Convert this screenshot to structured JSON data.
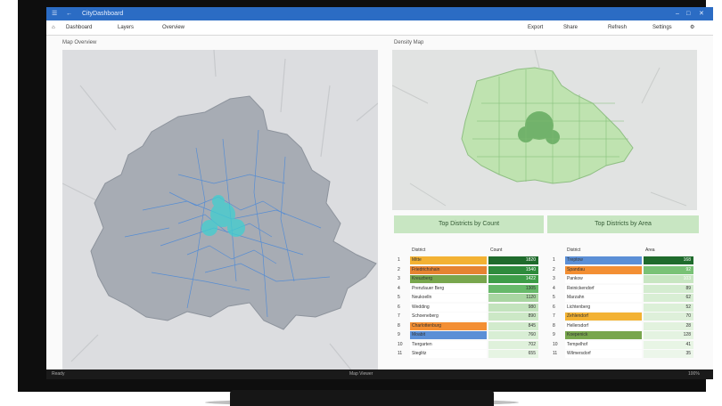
{
  "app": {
    "title": "CityDashboard",
    "statusbar_left": "Ready",
    "statusbar_center": "Map Viewer",
    "statusbar_right": "100%"
  },
  "toolbar": {
    "items": [
      "Dashboard",
      "Layers",
      "Overview"
    ],
    "right_items": [
      "Export",
      "Share",
      "Refresh",
      "Settings"
    ]
  },
  "panels": {
    "left_label": "Map Overview",
    "right_label": "Density Map"
  },
  "banners": {
    "left": "Top Districts by Count",
    "right": "Top Districts by Area"
  },
  "tables": {
    "left": {
      "col1": "District",
      "col2": "Count",
      "rows": [
        {
          "rank": "1",
          "name": "Mitte",
          "value": "1820",
          "color": "#f3b233",
          "vcolor": "#1f6b2c"
        },
        {
          "rank": "2",
          "name": "Friedrichshain",
          "value": "1540",
          "color": "#e58331",
          "vcolor": "#2e8b3c"
        },
        {
          "rank": "3",
          "name": "Kreuzberg",
          "value": "1422",
          "color": "#78a64d",
          "vcolor": "#3e9d48"
        },
        {
          "rank": "4",
          "name": "Prenzlauer Berg",
          "value": "1305",
          "color": "#ffffff",
          "vcolor": "#67b96a"
        },
        {
          "rank": "5",
          "name": "Neukoelln",
          "value": "1120",
          "color": "#ffffff",
          "vcolor": "#a9d6a2"
        },
        {
          "rank": "6",
          "name": "Wedding",
          "value": "980",
          "color": "#ffffff",
          "vcolor": "#c3e3bd"
        },
        {
          "rank": "7",
          "name": "Schoeneberg",
          "value": "890",
          "color": "#ffffff",
          "vcolor": "#cce8c6"
        },
        {
          "rank": "8",
          "name": "Charlottenburg",
          "value": "845",
          "color": "#f38f33",
          "vcolor": "#d2ebcd"
        },
        {
          "rank": "9",
          "name": "Moabit",
          "value": "760",
          "color": "#5b8fd6",
          "vcolor": "#d8eed4"
        },
        {
          "rank": "10",
          "name": "Tiergarten",
          "value": "702",
          "color": "#ffffff",
          "vcolor": "#dff1db"
        },
        {
          "rank": "11",
          "name": "Steglitz",
          "value": "655",
          "color": "#ffffff",
          "vcolor": "#e6f4e3"
        }
      ]
    },
    "right": {
      "col1": "District",
      "col2": "Area",
      "rows": [
        {
          "rank": "1",
          "name": "Treptow",
          "value": "168",
          "color": "#5b8fd6",
          "vcolor": "#1f6b2c"
        },
        {
          "rank": "2",
          "name": "Spandau",
          "value": "92",
          "color": "#f38f33",
          "vcolor": "#79c276"
        },
        {
          "rank": "3",
          "name": "Pankow",
          "value": "103",
          "color": "#ffffff",
          "vcolor": "#c8e6c2"
        },
        {
          "rank": "4",
          "name": "Reinickendorf",
          "value": "89",
          "color": "#ffffff",
          "vcolor": "#d4ecd0"
        },
        {
          "rank": "5",
          "name": "Marzahn",
          "value": "62",
          "color": "#ffffff",
          "vcolor": "#d8eed4"
        },
        {
          "rank": "6",
          "name": "Lichtenberg",
          "value": "52",
          "color": "#ffffff",
          "vcolor": "#dcf0d8"
        },
        {
          "rank": "7",
          "name": "Zehlendorf",
          "value": "70",
          "color": "#f3b233",
          "vcolor": "#def0da"
        },
        {
          "rank": "8",
          "name": "Hellersdorf",
          "value": "28",
          "color": "#ffffff",
          "vcolor": "#e2f2de"
        },
        {
          "rank": "9",
          "name": "Koepenick",
          "value": "128",
          "color": "#78a64d",
          "vcolor": "#e4f3e1"
        },
        {
          "rank": "10",
          "name": "Tempelhof",
          "value": "41",
          "color": "#ffffff",
          "vcolor": "#e8f5e5"
        },
        {
          "rank": "11",
          "name": "Wilmersdorf",
          "value": "35",
          "color": "#ffffff",
          "vcolor": "#ecf6ea"
        }
      ]
    }
  }
}
